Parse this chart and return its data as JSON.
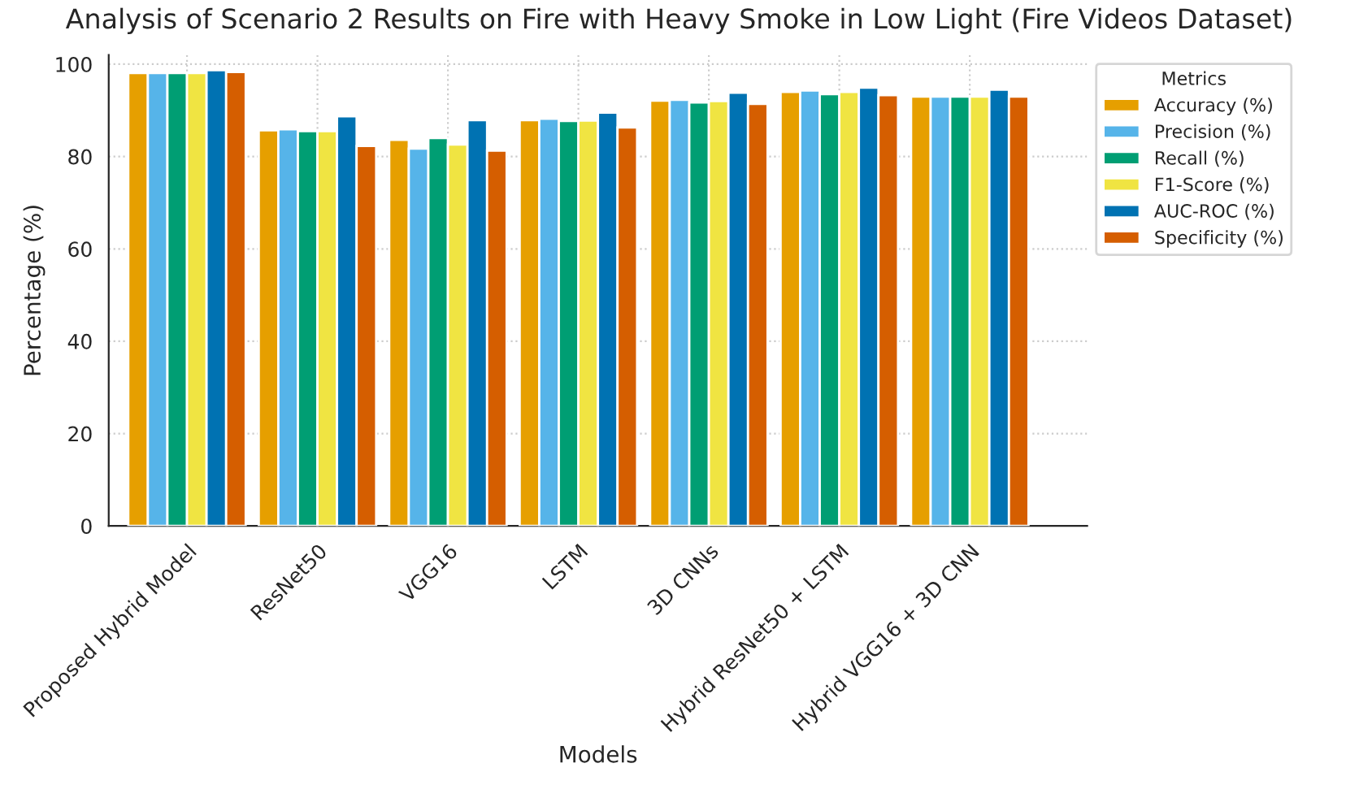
{
  "chart_data": {
    "type": "bar",
    "title": "Analysis of Scenario 2 Results on Fire with Heavy Smoke in Low Light (Fire Videos Dataset)",
    "xlabel": "Models",
    "ylabel": "Percentage (%)",
    "legend_title": "Metrics",
    "categories": [
      "Proposed Hybrid Model",
      "ResNet50",
      "VGG16",
      "LSTM",
      "3D CNNs",
      "Hybrid ResNet50 + LSTM",
      "Hybrid VGG16 + 3D CNN"
    ],
    "series": [
      {
        "name": "Accuracy (%)",
        "color": "#e69f00",
        "values": [
          98.1,
          85.7,
          83.6,
          87.9,
          92.1,
          94.0,
          93.0
        ]
      },
      {
        "name": "Precision (%)",
        "color": "#56b4e9",
        "values": [
          98.1,
          85.9,
          81.7,
          88.2,
          92.3,
          94.3,
          93.0
        ]
      },
      {
        "name": "Recall (%)",
        "color": "#009e73",
        "values": [
          98.1,
          85.5,
          84.0,
          87.7,
          91.7,
          93.5,
          93.0
        ]
      },
      {
        "name": "F1-Score (%)",
        "color": "#f0e442",
        "values": [
          98.1,
          85.5,
          82.6,
          87.8,
          92.0,
          94.0,
          93.0
        ]
      },
      {
        "name": "AUC-ROC (%)",
        "color": "#0072b2",
        "values": [
          98.7,
          88.7,
          87.9,
          89.5,
          93.8,
          94.9,
          94.5
        ]
      },
      {
        "name": "Specificity (%)",
        "color": "#d55e00",
        "values": [
          98.3,
          82.3,
          81.3,
          86.3,
          91.4,
          93.3,
          93.0
        ]
      }
    ],
    "ylim": [
      0,
      102
    ],
    "yticks": [
      0,
      20,
      40,
      60,
      80,
      100
    ],
    "grid": true,
    "legend": "right"
  }
}
